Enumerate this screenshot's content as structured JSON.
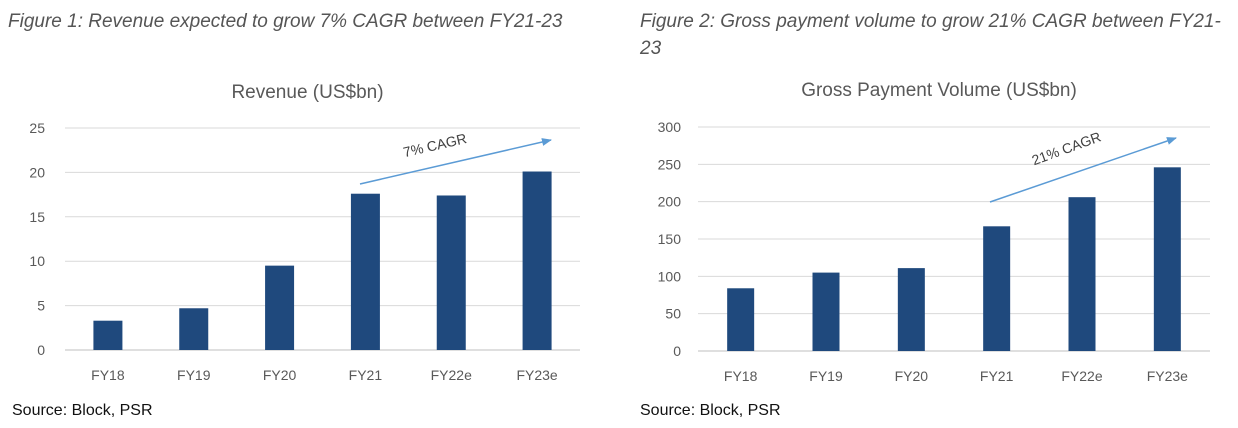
{
  "figures": [
    {
      "caption": "Figure 1: Revenue expected to grow 7% CAGR between FY21-23",
      "source": "Source: Block, PSR",
      "bar_color": "#1f497d",
      "arrow_color": "#5b9bd5",
      "annotation": "7% CAGR",
      "y_ticks": [
        "0",
        "5",
        "10",
        "15",
        "20",
        "25"
      ]
    },
    {
      "caption": "Figure 2: Gross payment volume to grow 21% CAGR between FY21-23",
      "source": "Source: Block, PSR",
      "bar_color": "#1f497d",
      "arrow_color": "#5b9bd5",
      "annotation": "21% CAGR",
      "y_ticks": [
        "0",
        "50",
        "100",
        "150",
        "200",
        "250",
        "300"
      ]
    }
  ],
  "chart_data": [
    {
      "type": "bar",
      "title": "Revenue (US$bn)",
      "categories": [
        "FY18",
        "FY19",
        "FY20",
        "FY21",
        "FY22e",
        "FY23e"
      ],
      "values": [
        3.3,
        4.7,
        9.5,
        17.6,
        17.4,
        20.1
      ],
      "ylim": [
        0,
        25
      ],
      "ytick_step": 5,
      "grid": true,
      "legend": "none",
      "annotations": [
        {
          "text": "7% CAGR",
          "type": "arrow",
          "from_category": "FY21",
          "to_category": "FY23e"
        }
      ]
    },
    {
      "type": "bar",
      "title": "Gross Payment Volume (US$bn)",
      "categories": [
        "FY18",
        "FY19",
        "FY20",
        "FY21",
        "FY22e",
        "FY23e"
      ],
      "values": [
        84,
        105,
        111,
        167,
        206,
        246
      ],
      "ylim": [
        0,
        300
      ],
      "ytick_step": 50,
      "grid": true,
      "legend": "none",
      "annotations": [
        {
          "text": "21% CAGR",
          "type": "arrow",
          "from_category": "FY21",
          "to_category": "FY23e"
        }
      ]
    }
  ]
}
